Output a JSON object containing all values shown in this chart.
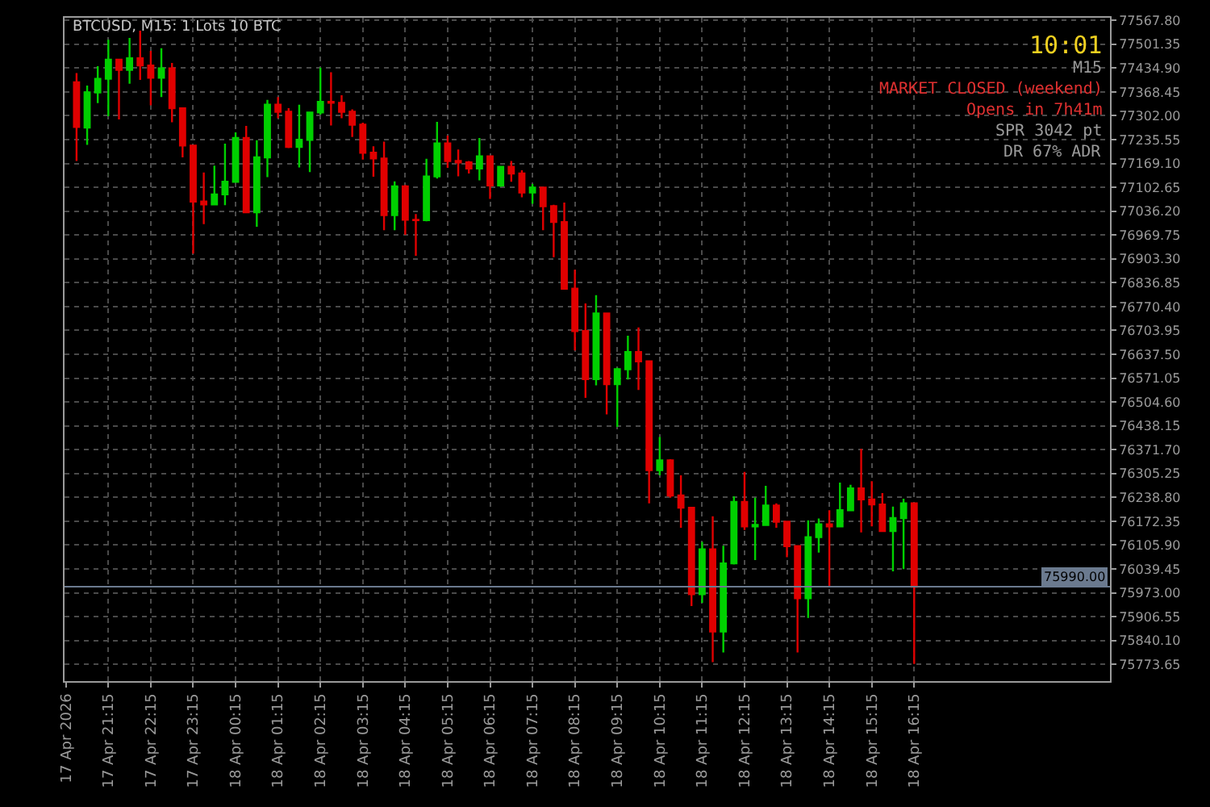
{
  "chart_data": {
    "type": "candlestick",
    "title": "BTCUSD, M15: 1 Lots 10 BTC",
    "x": [
      "2026-04-17T20:30",
      "2026-04-17T20:45",
      "2026-04-17T21:00",
      "2026-04-17T21:15",
      "2026-04-17T21:30",
      "2026-04-17T21:45",
      "2026-04-17T22:00",
      "2026-04-17T22:15",
      "2026-04-17T22:30",
      "2026-04-17T22:45",
      "2026-04-17T23:00",
      "2026-04-17T23:15",
      "2026-04-17T23:30",
      "2026-04-17T23:45",
      "2026-04-18T00:00",
      "2026-04-18T00:15",
      "2026-04-18T00:30",
      "2026-04-18T00:45",
      "2026-04-18T01:00",
      "2026-04-18T01:15",
      "2026-04-18T01:30",
      "2026-04-18T01:45",
      "2026-04-18T02:00",
      "2026-04-18T02:15",
      "2026-04-18T02:30",
      "2026-04-18T02:45",
      "2026-04-18T03:00",
      "2026-04-18T03:15",
      "2026-04-18T03:30",
      "2026-04-18T03:45",
      "2026-04-18T04:00",
      "2026-04-18T04:15",
      "2026-04-18T04:30",
      "2026-04-18T04:45",
      "2026-04-18T05:00",
      "2026-04-18T05:15",
      "2026-04-18T05:30",
      "2026-04-18T05:45",
      "2026-04-18T06:00",
      "2026-04-18T06:15",
      "2026-04-18T06:30",
      "2026-04-18T06:45",
      "2026-04-18T07:00",
      "2026-04-18T07:15",
      "2026-04-18T07:30",
      "2026-04-18T07:45",
      "2026-04-18T08:00",
      "2026-04-18T08:15",
      "2026-04-18T08:30",
      "2026-04-18T08:45",
      "2026-04-18T09:00",
      "2026-04-18T09:15",
      "2026-04-18T09:30",
      "2026-04-18T09:45",
      "2026-04-18T10:00",
      "2026-04-18T10:15",
      "2026-04-18T10:30",
      "2026-04-18T10:45",
      "2026-04-18T11:00",
      "2026-04-18T11:15",
      "2026-04-18T11:30",
      "2026-04-18T11:45",
      "2026-04-18T12:00",
      "2026-04-18T12:15",
      "2026-04-18T12:30",
      "2026-04-18T12:45",
      "2026-04-18T13:00",
      "2026-04-18T13:15",
      "2026-04-18T13:30",
      "2026-04-18T13:45",
      "2026-04-18T14:00",
      "2026-04-18T14:15",
      "2026-04-18T14:30",
      "2026-04-18T14:45",
      "2026-04-18T15:00",
      "2026-04-18T15:15",
      "2026-04-18T15:30",
      "2026-04-18T15:45",
      "2026-04-18T16:00",
      "2026-04-18T16:15"
    ],
    "ohlc": [
      [
        77395,
        77421,
        77176,
        77271
      ],
      [
        77269,
        77386,
        77221,
        77367
      ],
      [
        77367,
        77440,
        77337,
        77405
      ],
      [
        77405,
        77514,
        77301,
        77458
      ],
      [
        77458,
        77460,
        77292,
        77430
      ],
      [
        77430,
        77519,
        77391,
        77462
      ],
      [
        77462,
        77539,
        77402,
        77442
      ],
      [
        77442,
        77483,
        77331,
        77408
      ],
      [
        77408,
        77490,
        77354,
        77434
      ],
      [
        77434,
        77449,
        77284,
        77323
      ],
      [
        77323,
        77324,
        77186,
        77219
      ],
      [
        77219,
        77220,
        76918,
        77063
      ],
      [
        77063,
        77144,
        77000,
        77055
      ],
      [
        77055,
        77163,
        77053,
        77083
      ],
      [
        77083,
        77224,
        77053,
        77118
      ],
      [
        77118,
        77256,
        77116,
        77240
      ],
      [
        77240,
        77274,
        77031,
        77033
      ],
      [
        77033,
        77234,
        76993,
        77186
      ],
      [
        77186,
        77346,
        77131,
        77333
      ],
      [
        77333,
        77354,
        77295,
        77313
      ],
      [
        77313,
        77323,
        77212,
        77215
      ],
      [
        77215,
        77333,
        77158,
        77235
      ],
      [
        77235,
        77313,
        77145,
        77311
      ],
      [
        77311,
        77436,
        77305,
        77341
      ],
      [
        77341,
        77423,
        77275,
        77338
      ],
      [
        77338,
        77359,
        77295,
        77313
      ],
      [
        77313,
        77320,
        77243,
        77277
      ],
      [
        77277,
        77283,
        77180,
        77199
      ],
      [
        77199,
        77217,
        77132,
        77183
      ],
      [
        77183,
        77230,
        76983,
        77025
      ],
      [
        77025,
        77119,
        76983,
        77105
      ],
      [
        77105,
        77109,
        76970,
        77012
      ],
      [
        77012,
        77028,
        76912,
        77011
      ],
      [
        77011,
        77182,
        77008,
        77133
      ],
      [
        77133,
        77285,
        77127,
        77225
      ],
      [
        77225,
        77247,
        77157,
        77176
      ],
      [
        77176,
        77208,
        77133,
        77172
      ],
      [
        77172,
        77176,
        77141,
        77155
      ],
      [
        77155,
        77240,
        77122,
        77189
      ],
      [
        77189,
        77191,
        77070,
        77108
      ],
      [
        77108,
        77162,
        77104,
        77160
      ],
      [
        77160,
        77176,
        77118,
        77141
      ],
      [
        77141,
        77150,
        77075,
        77088
      ],
      [
        77088,
        77112,
        77057,
        77102
      ],
      [
        77102,
        77104,
        76983,
        77050
      ],
      [
        77050,
        77054,
        76908,
        77006
      ],
      [
        77006,
        77060,
        76818,
        76820
      ],
      [
        76820,
        76873,
        76648,
        76702
      ],
      [
        76702,
        76779,
        76516,
        76568
      ],
      [
        76568,
        76802,
        76551,
        76751
      ],
      [
        76751,
        76753,
        76470,
        76554
      ],
      [
        76554,
        76600,
        76435,
        76596
      ],
      [
        76596,
        76689,
        76567,
        76644
      ],
      [
        76644,
        76712,
        76538,
        76618
      ],
      [
        76618,
        76620,
        76222,
        76315
      ],
      [
        76315,
        76407,
        76300,
        76342
      ],
      [
        76342,
        76345,
        76238,
        76244
      ],
      [
        76244,
        76300,
        76154,
        76210
      ],
      [
        76210,
        76212,
        75936,
        75969
      ],
      [
        75969,
        76115,
        75945,
        76094
      ],
      [
        76094,
        76186,
        75780,
        75865
      ],
      [
        75865,
        76104,
        75807,
        76055
      ],
      [
        76055,
        76242,
        76052,
        76226
      ],
      [
        76226,
        76310,
        76148,
        76158
      ],
      [
        76158,
        76238,
        76064,
        76162
      ],
      [
        76162,
        76271,
        76160,
        76216
      ],
      [
        76216,
        76222,
        76154,
        76171
      ],
      [
        76171,
        76173,
        76072,
        76103
      ],
      [
        76103,
        76105,
        75807,
        75958
      ],
      [
        75958,
        76175,
        75903,
        76128
      ],
      [
        76128,
        76180,
        76085,
        76164
      ],
      [
        76164,
        76203,
        75990,
        76158
      ],
      [
        76158,
        76280,
        76156,
        76203
      ],
      [
        76203,
        76274,
        76200,
        76264
      ],
      [
        76264,
        76374,
        76141,
        76233
      ],
      [
        76233,
        76284,
        76158,
        76219
      ],
      [
        76219,
        76251,
        76143,
        76145
      ],
      [
        76145,
        76213,
        76033,
        76181
      ],
      [
        76181,
        76235,
        76039,
        76222
      ],
      [
        76222,
        76224,
        75775,
        75990
      ]
    ],
    "colors": [
      "#e00000",
      "#00d000",
      "#00d000",
      "#00d000",
      "#e00000",
      "#00d000",
      "#e00000",
      "#e00000",
      "#00d000",
      "#e00000",
      "#e00000",
      "#e00000",
      "#e00000",
      "#00d000",
      "#00d000",
      "#00d000",
      "#e00000",
      "#00d000",
      "#00d000",
      "#e00000",
      "#e00000",
      "#00d000",
      "#00d000",
      "#00d000",
      "#e00000",
      "#e00000",
      "#e00000",
      "#e00000",
      "#e00000",
      "#e00000",
      "#00d000",
      "#e00000",
      "#e00000",
      "#00d000",
      "#00d000",
      "#e00000",
      "#e00000",
      "#e00000",
      "#00d000",
      "#e00000",
      "#00d000",
      "#e00000",
      "#e00000",
      "#00d000",
      "#e00000",
      "#e00000",
      "#e00000",
      "#e00000",
      "#e00000",
      "#00d000",
      "#e00000",
      "#00d000",
      "#00d000",
      "#e00000",
      "#e00000",
      "#00d000",
      "#e00000",
      "#e00000",
      "#e00000",
      "#00d000",
      "#e00000",
      "#00d000",
      "#00d000",
      "#e00000",
      "#00d000",
      "#00d000",
      "#e00000",
      "#e00000",
      "#e00000",
      "#00d000",
      "#00d000",
      "#e00000",
      "#00d000",
      "#00d000",
      "#e00000",
      "#e00000",
      "#e00000",
      "#00d000",
      "#00d000",
      "#e00000"
    ],
    "xlim": [
      "2026-04-17T20:13",
      "2026-04-18T20:52"
    ],
    "xticks": [
      {
        "value": "2026-04-17T20:15",
        "label": "17 Apr 2026"
      },
      {
        "value": "2026-04-17T21:15",
        "label": "17 Apr 21:15"
      },
      {
        "value": "2026-04-17T22:15",
        "label": "17 Apr 22:15"
      },
      {
        "value": "2026-04-17T23:15",
        "label": "17 Apr 23:15"
      },
      {
        "value": "2026-04-18T00:15",
        "label": "18 Apr 00:15"
      },
      {
        "value": "2026-04-18T01:15",
        "label": "18 Apr 01:15"
      },
      {
        "value": "2026-04-18T02:15",
        "label": "18 Apr 02:15"
      },
      {
        "value": "2026-04-18T03:15",
        "label": "18 Apr 03:15"
      },
      {
        "value": "2026-04-18T04:15",
        "label": "18 Apr 04:15"
      },
      {
        "value": "2026-04-18T05:15",
        "label": "18 Apr 05:15"
      },
      {
        "value": "2026-04-18T06:15",
        "label": "18 Apr 06:15"
      },
      {
        "value": "2026-04-18T07:15",
        "label": "18 Apr 07:15"
      },
      {
        "value": "2026-04-18T08:15",
        "label": "18 Apr 08:15"
      },
      {
        "value": "2026-04-18T09:15",
        "label": "18 Apr 09:15"
      },
      {
        "value": "2026-04-18T10:15",
        "label": "18 Apr 10:15"
      },
      {
        "value": "2026-04-18T11:15",
        "label": "18 Apr 11:15"
      },
      {
        "value": "2026-04-18T12:15",
        "label": "18 Apr 12:15"
      },
      {
        "value": "2026-04-18T13:15",
        "label": "18 Apr 13:15"
      },
      {
        "value": "2026-04-18T14:15",
        "label": "18 Apr 14:15"
      },
      {
        "value": "2026-04-18T15:15",
        "label": "18 Apr 15:15"
      },
      {
        "value": "2026-04-18T16:15",
        "label": "18 Apr 16:15"
      }
    ],
    "ylim": [
      75727,
      77575
    ],
    "yticks": [
      {
        "value": 77567.8,
        "label": "77567.80"
      },
      {
        "value": 77501.35,
        "label": "77501.35"
      },
      {
        "value": 77434.9,
        "label": "77434.90"
      },
      {
        "value": 77368.45,
        "label": "77368.45"
      },
      {
        "value": 77302,
        "label": "77302.00"
      },
      {
        "value": 77235.55,
        "label": "77235.55"
      },
      {
        "value": 77169.1,
        "label": "77169.10"
      },
      {
        "value": 77102.65,
        "label": "77102.65"
      },
      {
        "value": 77036.2,
        "label": "77036.20"
      },
      {
        "value": 76969.75,
        "label": "76969.75"
      },
      {
        "value": 76903.3,
        "label": "76903.30"
      },
      {
        "value": 76836.85,
        "label": "76836.85"
      },
      {
        "value": 76770.4,
        "label": "76770.40"
      },
      {
        "value": 76703.95,
        "label": "76703.95"
      },
      {
        "value": 76637.5,
        "label": "76637.50"
      },
      {
        "value": 76571.05,
        "label": "76571.05"
      },
      {
        "value": 76504.6,
        "label": "76504.60"
      },
      {
        "value": 76438.15,
        "label": "76438.15"
      },
      {
        "value": 76371.7,
        "label": "76371.70"
      },
      {
        "value": 76305.25,
        "label": "76305.25"
      },
      {
        "value": 76238.8,
        "label": "76238.80"
      },
      {
        "value": 76172.35,
        "label": "76172.35"
      },
      {
        "value": 76105.9,
        "label": "76105.90"
      },
      {
        "value": 76039.45,
        "label": "76039.45"
      },
      {
        "value": 75973,
        "label": "75973.00"
      },
      {
        "value": 75906.55,
        "label": "75906.55"
      },
      {
        "value": 75840.1,
        "label": "75840.10"
      },
      {
        "value": 75773.65,
        "label": "75773.65"
      }
    ],
    "ref_lines": [
      {
        "axis": "y",
        "value": 75990,
        "label": "75990.00",
        "color": "#6b7a8f"
      }
    ],
    "annotations": [
      "10:01",
      "M15",
      "MARKET CLOSED (weekend)",
      "Opens in 7h41m",
      "SPR 3042 pt",
      "DR 67% ADR"
    ],
    "grid": true
  }
}
